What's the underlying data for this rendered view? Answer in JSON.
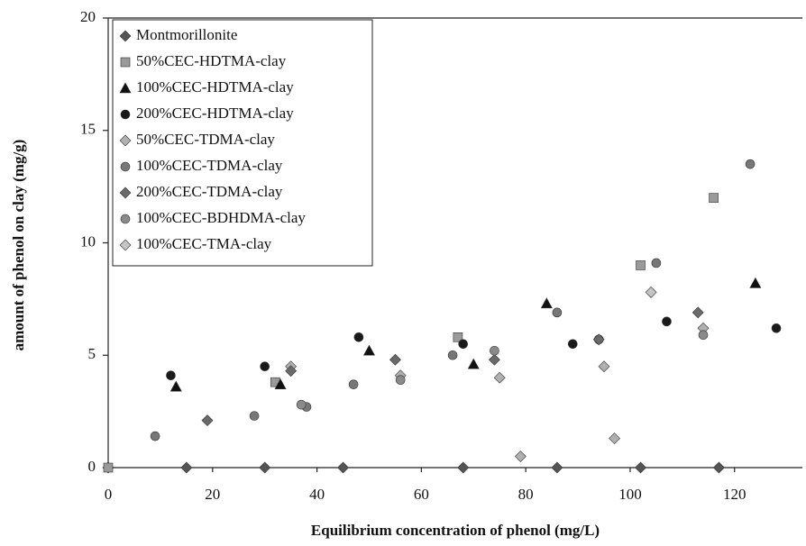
{
  "chart_data": {
    "type": "scatter",
    "x_label": "Equilibrium concentration of phenol (mg/L)",
    "y_label": "amount of phenol on clay (mg/g)",
    "xlim": [
      0,
      133
    ],
    "xticks": [
      0,
      20,
      40,
      60,
      80,
      100,
      120
    ],
    "ylim": [
      0,
      20
    ],
    "yticks": [
      0,
      5,
      10,
      15,
      20
    ],
    "grid": false,
    "legend": "top-left",
    "series": [
      {
        "name": "Montmorillonite",
        "color": "#555555",
        "marker": "diamond",
        "x": [
          0,
          15,
          30,
          45,
          68,
          86,
          102,
          117
        ],
        "values": [
          0,
          0,
          0,
          0,
          0,
          0,
          0,
          0
        ]
      },
      {
        "name": "50%CEC-HDTMA-clay",
        "color": "#9a9a9a",
        "marker": "square",
        "x": [
          0,
          32,
          67,
          102,
          116
        ],
        "values": [
          0,
          3.8,
          5.8,
          9.0,
          12.0
        ]
      },
      {
        "name": "100%CEC-HDTMA-clay",
        "color": "#111111",
        "marker": "triangle",
        "x": [
          13,
          33,
          50,
          70,
          84,
          124
        ],
        "values": [
          3.6,
          3.7,
          5.2,
          4.6,
          7.3,
          8.2
        ]
      },
      {
        "name": "200%CEC-HDTMA-clay",
        "color": "#1a1a1a",
        "marker": "circle",
        "x": [
          12,
          30,
          48,
          68,
          89,
          107,
          128
        ],
        "values": [
          4.1,
          4.5,
          5.8,
          5.5,
          5.5,
          6.5,
          6.2
        ]
      },
      {
        "name": "50%CEC-TDMA-clay",
        "color": "#b0b0b0",
        "marker": "diamond",
        "x": [
          35,
          56,
          75,
          79,
          95,
          97,
          114
        ],
        "values": [
          4.5,
          4.1,
          4.0,
          0.5,
          4.5,
          1.3,
          6.2
        ]
      },
      {
        "name": "100%CEC-TDMA-clay",
        "color": "#777777",
        "marker": "circle",
        "x": [
          9,
          28,
          38,
          47,
          66,
          86,
          94,
          105,
          123
        ],
        "values": [
          1.4,
          2.3,
          2.7,
          3.7,
          5.0,
          6.9,
          5.7,
          9.1,
          13.5
        ]
      },
      {
        "name": "200%CEC-TDMA-clay",
        "color": "#6a6a6a",
        "marker": "diamond",
        "x": [
          19,
          35,
          55,
          74,
          94,
          113
        ],
        "values": [
          2.1,
          4.3,
          4.8,
          4.8,
          5.7,
          6.9
        ]
      },
      {
        "name": "100%CEC-BDHDMA-clay",
        "color": "#8a8a8a",
        "marker": "circle",
        "x": [
          37,
          56,
          74,
          114
        ],
        "values": [
          2.8,
          3.9,
          5.2,
          5.9
        ]
      },
      {
        "name": "100%CEC-TMA-clay",
        "color": "#c4c4c4",
        "marker": "diamond",
        "x": [
          104
        ],
        "values": [
          7.8
        ]
      }
    ]
  }
}
